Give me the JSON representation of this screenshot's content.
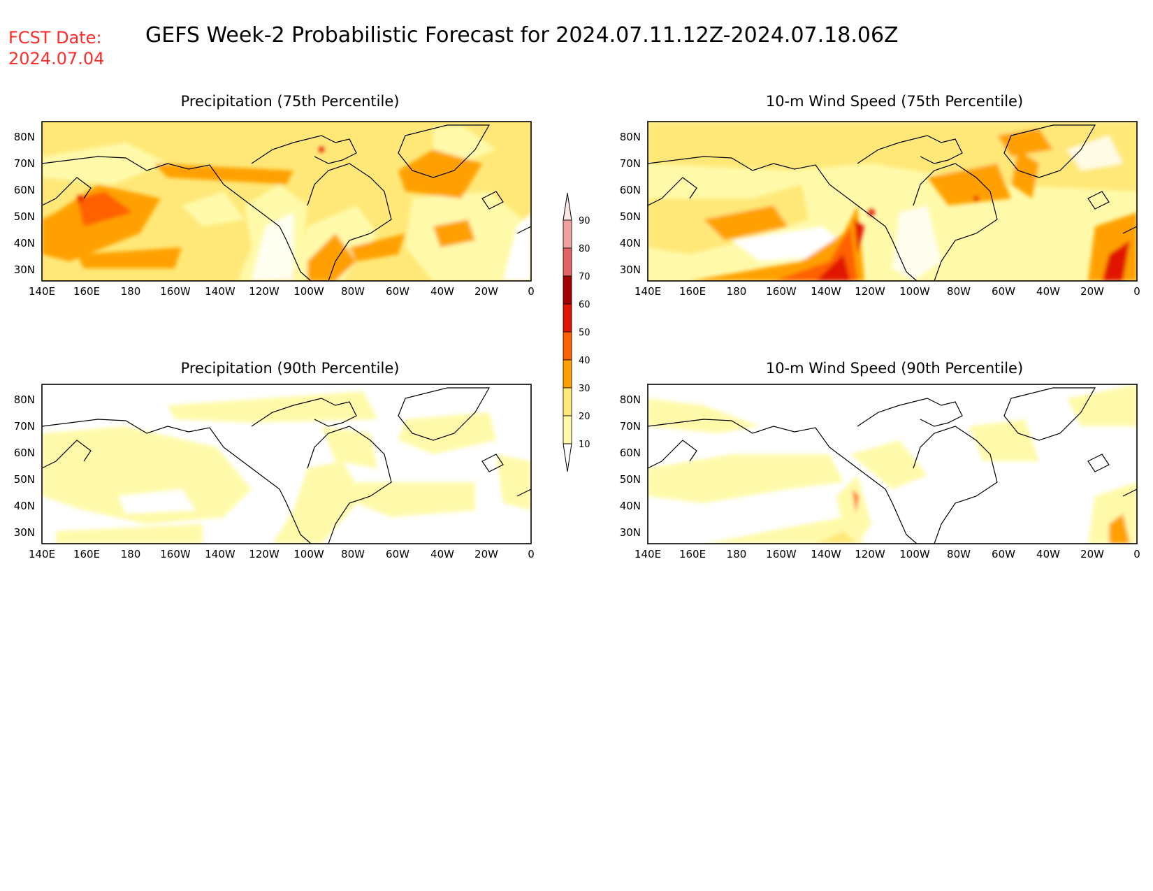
{
  "header": {
    "fcst_date_label": "FCST Date:",
    "fcst_date_value": "2024.07.04",
    "title": "GEFS Week-2 Probabilistic Forecast for 2024.07.11.12Z-2024.07.18.06Z"
  },
  "map_axes": {
    "lon_labels": [
      "140E",
      "160E",
      "180",
      "160W",
      "140W",
      "120W",
      "100W",
      "80W",
      "60W",
      "40W",
      "20W",
      "0"
    ],
    "lat_labels": [
      "80N",
      "70N",
      "60N",
      "50N",
      "40N",
      "30N"
    ],
    "lon_range": [
      "140E",
      "0"
    ],
    "lat_range": [
      "25N",
      "85N"
    ]
  },
  "panels": [
    {
      "title": "Precipitation (75th Percentile)",
      "variable": "precipitation",
      "percentile": 75
    },
    {
      "title": "10-m Wind Speed (75th Percentile)",
      "variable": "10m_wind_speed",
      "percentile": 75
    },
    {
      "title": "Precipitation (90th Percentile)",
      "variable": "precipitation",
      "percentile": 90
    },
    {
      "title": "10-m Wind Speed (90th Percentile)",
      "variable": "10m_wind_speed",
      "percentile": 90
    }
  ],
  "colorbar": {
    "levels": [
      "10",
      "20",
      "30",
      "40",
      "50",
      "60",
      "70",
      "80",
      "90"
    ],
    "colors": [
      "#fffaaa",
      "#ffe878",
      "#ffa000",
      "#ff6000",
      "#e11400",
      "#a50000",
      "#e46464",
      "#f0a0a0",
      "#fbe4e4"
    ]
  }
}
